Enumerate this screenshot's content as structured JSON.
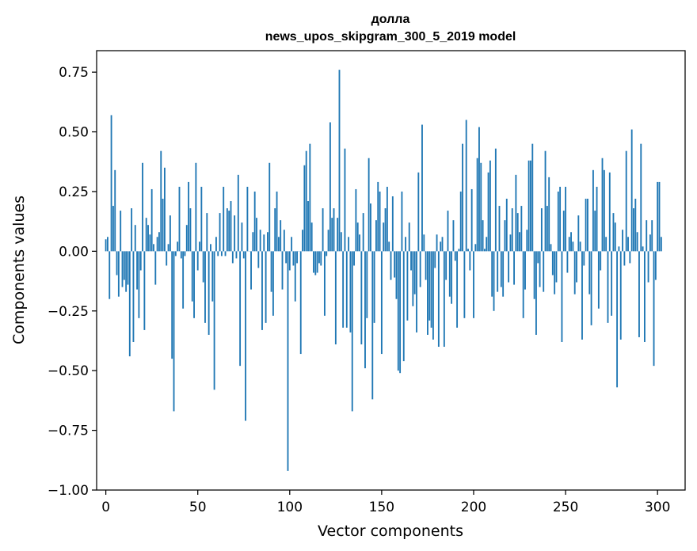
{
  "chart_data": {
    "type": "bar",
    "title": "долла",
    "subtitle": "news_upos_skipgram_300_5_2019 model",
    "xlabel": "Vector components",
    "ylabel": "Components values",
    "xlim": [
      -5,
      315
    ],
    "ylim": [
      -1.0,
      0.84
    ],
    "xticks": [
      0,
      50,
      100,
      150,
      200,
      250,
      300
    ],
    "yticks": [
      0.75,
      0.5,
      0.25,
      0.0,
      -0.25,
      -0.5,
      -0.75,
      -1.0
    ],
    "ytick_labels": [
      "0.75",
      "0.50",
      "0.25",
      "0.00",
      "−0.25",
      "−0.50",
      "−0.75",
      "−1.00"
    ],
    "bar_color": "#1f77b4",
    "values": [
      0.05,
      0.06,
      -0.2,
      0.57,
      0.19,
      0.34,
      -0.1,
      -0.19,
      0.17,
      -0.15,
      -0.12,
      -0.17,
      -0.14,
      -0.44,
      0.18,
      -0.38,
      0.11,
      -0.16,
      -0.28,
      -0.08,
      0.37,
      -0.33,
      0.14,
      0.11,
      0.07,
      0.26,
      0.03,
      -0.14,
      0.06,
      0.08,
      0.42,
      0.22,
      0.35,
      -0.06,
      0.03,
      0.15,
      -0.45,
      -0.67,
      -0.02,
      0.04,
      0.27,
      -0.03,
      -0.24,
      -0.02,
      0.11,
      0.29,
      0.18,
      -0.21,
      -0.28,
      0.37,
      -0.08,
      0.04,
      0.27,
      -0.13,
      -0.3,
      0.16,
      -0.35,
      0.03,
      -0.21,
      -0.58,
      0.06,
      -0.02,
      0.16,
      -0.02,
      0.27,
      -0.02,
      0.18,
      0.17,
      0.21,
      -0.05,
      0.15,
      -0.03,
      0.32,
      -0.48,
      0.12,
      -0.03,
      -0.71,
      0.27,
      0.0,
      -0.16,
      0.08,
      0.25,
      0.14,
      -0.07,
      0.09,
      -0.33,
      0.07,
      -0.3,
      0.08,
      0.37,
      -0.17,
      -0.27,
      0.18,
      0.25,
      0.06,
      0.13,
      -0.16,
      0.09,
      -0.05,
      -0.92,
      -0.08,
      0.06,
      -0.06,
      -0.21,
      -0.05,
      0.0,
      -0.43,
      0.09,
      0.36,
      0.42,
      0.21,
      0.45,
      0.12,
      -0.09,
      -0.1,
      -0.09,
      -0.05,
      -0.06,
      0.18,
      -0.27,
      -0.02,
      0.09,
      0.54,
      0.14,
      0.18,
      -0.39,
      0.14,
      0.76,
      0.08,
      -0.32,
      0.43,
      -0.32,
      0.06,
      -0.34,
      -0.67,
      -0.06,
      0.26,
      0.12,
      0.07,
      -0.39,
      0.16,
      -0.49,
      -0.28,
      0.39,
      0.2,
      -0.62,
      -0.3,
      0.13,
      0.29,
      0.25,
      -0.43,
      0.12,
      0.18,
      0.27,
      0.04,
      -0.12,
      0.23,
      -0.11,
      -0.2,
      -0.5,
      -0.51,
      0.25,
      -0.46,
      0.06,
      -0.29,
      0.12,
      -0.08,
      -0.23,
      -0.18,
      -0.34,
      0.33,
      -0.15,
      0.53,
      0.07,
      -0.12,
      -0.35,
      -0.29,
      -0.32,
      -0.37,
      -0.07,
      0.07,
      -0.4,
      0.04,
      0.06,
      -0.4,
      -0.12,
      0.17,
      -0.19,
      -0.22,
      0.13,
      -0.04,
      -0.32,
      0.01,
      0.25,
      0.45,
      -0.28,
      0.55,
      0.01,
      -0.08,
      0.26,
      -0.28,
      0.03,
      0.39,
      0.52,
      0.37,
      0.13,
      0.01,
      0.06,
      0.33,
      0.38,
      -0.19,
      -0.25,
      0.43,
      -0.17,
      0.19,
      -0.15,
      -0.19,
      0.13,
      0.22,
      -0.13,
      0.07,
      0.18,
      -0.14,
      0.32,
      0.16,
      0.08,
      0.19,
      -0.28,
      -0.16,
      0.09,
      0.38,
      0.38,
      0.45,
      -0.2,
      -0.35,
      -0.05,
      -0.15,
      0.18,
      -0.17,
      0.42,
      0.19,
      0.31,
      0.03,
      -0.1,
      -0.18,
      -0.13,
      0.25,
      0.27,
      -0.38,
      0.17,
      0.27,
      -0.09,
      0.06,
      0.08,
      0.04,
      -0.18,
      -0.13,
      0.15,
      0.04,
      -0.37,
      -0.06,
      0.22,
      0.22,
      -0.18,
      -0.31,
      0.34,
      0.17,
      0.27,
      -0.24,
      -0.08,
      0.39,
      0.34,
      0.06,
      -0.3,
      0.33,
      -0.27,
      0.16,
      0.12,
      -0.57,
      0.02,
      -0.37,
      0.09,
      -0.06,
      0.42,
      0.06,
      -0.05,
      0.51,
      0.18,
      0.22,
      0.08,
      -0.36,
      0.45,
      0.02,
      -0.38,
      0.13,
      -0.13,
      0.07,
      0.13,
      -0.48,
      -0.12,
      0.29,
      0.29,
      0.06
    ]
  }
}
